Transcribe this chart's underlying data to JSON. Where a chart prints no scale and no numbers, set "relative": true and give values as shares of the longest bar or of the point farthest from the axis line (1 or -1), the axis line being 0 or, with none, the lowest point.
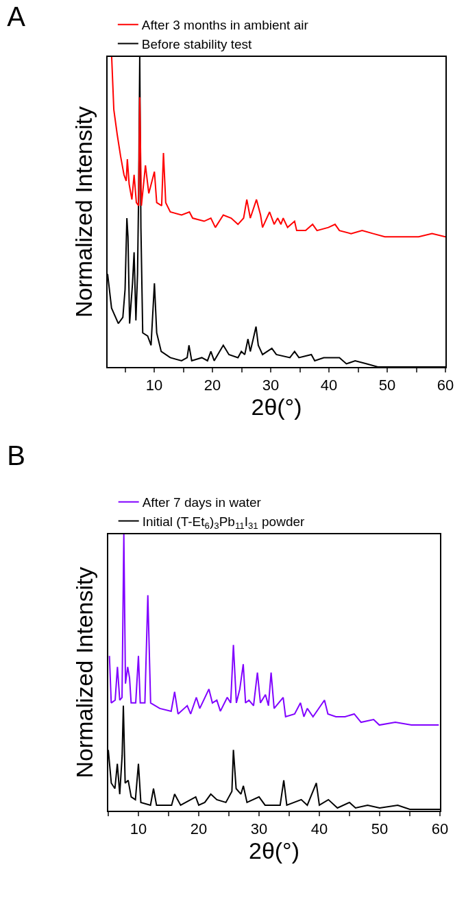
{
  "chart_data": [
    {
      "type": "line",
      "title": "A",
      "xlabel": "2θ(°)",
      "ylabel": "Normalized Intensity",
      "relative": true,
      "legend": "top",
      "xlim": [
        2,
        60
      ],
      "xticks": [
        {
          "value": 5,
          "label": null
        },
        10,
        {
          "value": 15,
          "label": null
        },
        20,
        {
          "value": 25,
          "label": null
        },
        30,
        {
          "value": 35,
          "label": null
        },
        40,
        {
          "value": 45,
          "label": null
        },
        50,
        {
          "value": 55,
          "label": null
        },
        60
      ],
      "series": [
        {
          "name": "After 3 months in ambient air",
          "color": "#ff0000",
          "x": [
            2.7,
            3.07,
            3.65,
            4.23,
            4.81,
            5.2,
            5.39,
            5.7,
            6.17,
            6.55,
            6.94,
            7.33,
            7.52,
            7.8,
            8.5,
            9.07,
            10.04,
            10.43,
            11.28,
            11.59,
            11.98,
            12.76,
            14.7,
            16.05,
            16.6,
            18.57,
            19.73,
            20.5,
            21.86,
            23.22,
            24.38,
            25.35,
            25.9,
            26.5,
            27.56,
            28.26,
            28.6,
            29.81,
            30.6,
            31.2,
            31.75,
            32.14,
            32.9,
            34.1,
            34.46,
            36.0,
            37.2,
            37.95,
            39.9,
            41.05,
            41.8,
            43.8,
            45.7,
            47.6,
            49.6,
            51.5,
            53.5,
            55.4,
            57.7,
            60
          ],
          "values": [
            1.0,
            0.83,
            0.75,
            0.68,
            0.62,
            0.6,
            0.67,
            0.59,
            0.54,
            0.62,
            0.53,
            0.52,
            0.87,
            0.52,
            0.65,
            0.56,
            0.63,
            0.53,
            0.52,
            0.69,
            0.53,
            0.5,
            0.49,
            0.5,
            0.48,
            0.47,
            0.48,
            0.45,
            0.49,
            0.48,
            0.46,
            0.48,
            0.54,
            0.48,
            0.54,
            0.49,
            0.45,
            0.5,
            0.46,
            0.48,
            0.46,
            0.48,
            0.45,
            0.47,
            0.44,
            0.44,
            0.46,
            0.44,
            0.45,
            0.46,
            0.44,
            0.43,
            0.44,
            0.43,
            0.42,
            0.42,
            0.42,
            0.42,
            0.43,
            0.42
          ]
        },
        {
          "name": "Before stability test",
          "color": "#000000",
          "x": [
            2.0,
            2.68,
            3.84,
            4.62,
            5.0,
            5.31,
            5.5,
            5.78,
            6.28,
            6.55,
            6.86,
            7.14,
            7.33,
            7.52,
            7.72,
            8.03,
            8.88,
            9.46,
            10.04,
            10.43,
            11.2,
            12.76,
            14.7,
            15.66,
            15.97,
            16.44,
            18.18,
            19.15,
            19.73,
            20.3,
            21.86,
            22.83,
            24.38,
            24.96,
            25.55,
            26.1,
            26.5,
            27.0,
            27.48,
            27.87,
            28.6,
            30.2,
            30.97,
            33.3,
            34.1,
            34.85,
            36.98,
            37.56,
            39.11,
            41.8,
            43.0,
            44.5,
            46.5,
            48.4,
            51.5,
            60
          ],
          "values": [
            0.3,
            0.19,
            0.14,
            0.16,
            0.25,
            0.48,
            0.42,
            0.14,
            0.27,
            0.37,
            0.15,
            0.3,
            0.56,
            1.0,
            0.45,
            0.11,
            0.1,
            0.07,
            0.27,
            0.11,
            0.05,
            0.03,
            0.02,
            0.03,
            0.07,
            0.02,
            0.03,
            0.02,
            0.05,
            0.02,
            0.07,
            0.04,
            0.03,
            0.05,
            0.04,
            0.09,
            0.05,
            0.09,
            0.13,
            0.07,
            0.04,
            0.06,
            0.04,
            0.03,
            0.05,
            0.03,
            0.04,
            0.02,
            0.03,
            0.03,
            0.01,
            0.02,
            0.01,
            0.0,
            0.0,
            0.0
          ]
        }
      ]
    },
    {
      "type": "line",
      "title": "B",
      "xlabel": "2θ(°)",
      "ylabel": "Normalized Intensity",
      "relative": true,
      "legend": "top",
      "xlim": [
        5,
        60
      ],
      "xticks": [
        {
          "value": 5,
          "label": null
        },
        10,
        {
          "value": 15,
          "label": null
        },
        20,
        {
          "value": 25,
          "label": null
        },
        30,
        {
          "value": 35,
          "label": null
        },
        40,
        {
          "value": 45,
          "label": null
        },
        50,
        {
          "value": 55,
          "label": null
        },
        60
      ],
      "series": [
        {
          "name": "After 7 days in water",
          "color": "#8000ff",
          "x": [
            5.19,
            5.49,
            6.14,
            6.52,
            6.9,
            7.28,
            7.58,
            7.85,
            8.22,
            8.53,
            8.79,
            9.55,
            10.0,
            10.3,
            11.07,
            11.56,
            12.02,
            13.54,
            15.43,
            16.0,
            16.57,
            18.09,
            18.66,
            19.6,
            20.17,
            21.69,
            22.26,
            23.0,
            23.59,
            24.73,
            25.3,
            25.75,
            26.24,
            26.81,
            27.38,
            27.76,
            28.33,
            29.09,
            29.73,
            30.23,
            31.06,
            31.56,
            32.0,
            32.5,
            34.0,
            34.4,
            35.9,
            36.87,
            37.44,
            38.0,
            38.95,
            40.85,
            41.42,
            42.75,
            44.26,
            45.78,
            46.92,
            49.0,
            49.95,
            52.6,
            55.27,
            57.92,
            59.8
          ],
          "values": [
            0.56,
            0.39,
            0.4,
            0.52,
            0.4,
            0.41,
            1.0,
            0.46,
            0.52,
            0.48,
            0.39,
            0.39,
            0.56,
            0.39,
            0.39,
            0.78,
            0.39,
            0.37,
            0.36,
            0.43,
            0.35,
            0.38,
            0.35,
            0.41,
            0.37,
            0.44,
            0.39,
            0.4,
            0.36,
            0.41,
            0.39,
            0.6,
            0.39,
            0.44,
            0.53,
            0.39,
            0.4,
            0.38,
            0.5,
            0.39,
            0.42,
            0.38,
            0.5,
            0.37,
            0.41,
            0.34,
            0.35,
            0.39,
            0.34,
            0.37,
            0.34,
            0.4,
            0.35,
            0.34,
            0.34,
            0.35,
            0.32,
            0.33,
            0.31,
            0.32,
            0.31,
            0.31,
            0.31
          ]
        },
        {
          "name": "Initial (T-Et$_{6}$)$_{3}$Pb$_{11}$I$_{31}$ powder",
          "color": "#000000",
          "x": [
            5.0,
            5.5,
            6.1,
            6.5,
            6.9,
            7.3,
            7.5,
            7.8,
            8.3,
            8.8,
            9.5,
            10.0,
            10.4,
            12.0,
            12.5,
            13.0,
            15.5,
            16.0,
            17.0,
            19.5,
            20.0,
            21.0,
            22.0,
            23.0,
            24.5,
            25.5,
            25.75,
            26.2,
            27.0,
            27.4,
            28.0,
            30.0,
            31.0,
            33.5,
            34.1,
            34.6,
            37.0,
            38.0,
            39.5,
            40.0,
            41.5,
            43.0,
            45.0,
            46.0,
            48.0,
            50.0,
            53.0,
            55.0,
            60.0
          ],
          "values": [
            0.22,
            0.1,
            0.08,
            0.17,
            0.06,
            0.2,
            0.38,
            0.1,
            0.11,
            0.05,
            0.04,
            0.17,
            0.03,
            0.02,
            0.08,
            0.02,
            0.02,
            0.06,
            0.02,
            0.05,
            0.02,
            0.03,
            0.06,
            0.04,
            0.03,
            0.07,
            0.22,
            0.08,
            0.06,
            0.09,
            0.03,
            0.05,
            0.02,
            0.02,
            0.11,
            0.02,
            0.04,
            0.02,
            0.1,
            0.02,
            0.04,
            0.01,
            0.03,
            0.01,
            0.02,
            0.01,
            0.02,
            0.005,
            0.005
          ]
        }
      ]
    }
  ]
}
